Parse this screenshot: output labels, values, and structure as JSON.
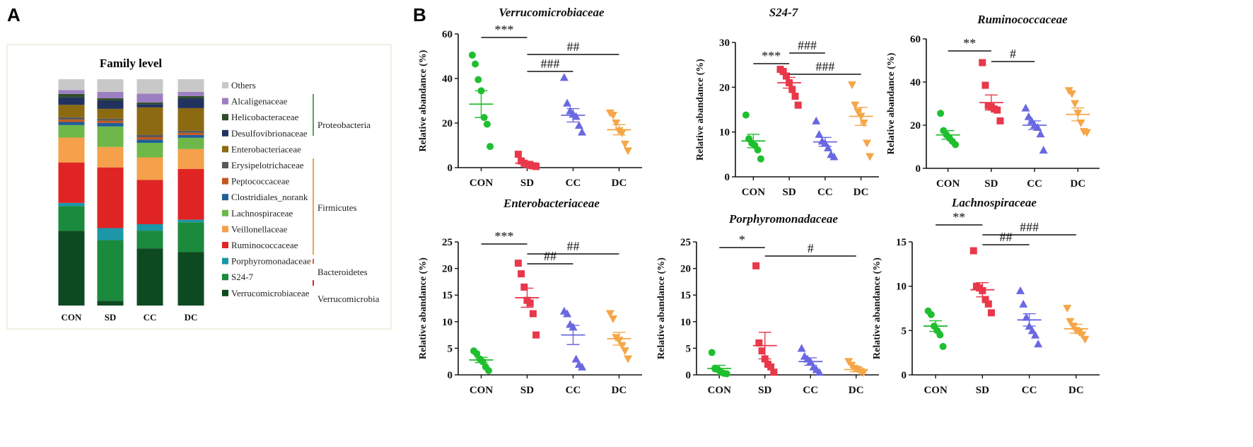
{
  "panel_labels": {
    "a": "A",
    "b": "B"
  },
  "stack": {
    "title": "Family level",
    "categories": [
      "CON",
      "SD",
      "CC",
      "DC"
    ],
    "families": [
      {
        "name": "Verrucomicrobiaceae",
        "color": "#0d4a22",
        "values": [
          48.0,
          3.4,
          35.5,
          38.0
        ]
      },
      {
        "name": "S24-7",
        "color": "#1b8a3c",
        "values": [
          16.0,
          43.0,
          11.0,
          21.0
        ]
      },
      {
        "name": "Porphyromonadaceae",
        "color": "#1b97a8",
        "values": [
          2.0,
          8.5,
          4.0,
          1.8
        ]
      },
      {
        "name": "Ruminococcaceae",
        "color": "#e02424",
        "values": [
          26.0,
          43.0,
          27.5,
          36.0
        ]
      },
      {
        "name": "Veillonellaceae",
        "color": "#f5a04a",
        "values": [
          16.0,
          14.5,
          14.0,
          14.0
        ]
      },
      {
        "name": "Lachnospiraceae",
        "color": "#6db849",
        "values": [
          8.0,
          14.5,
          9.0,
          8.0
        ]
      },
      {
        "name": "Clostridiales_norank",
        "color": "#1f5f9a",
        "values": [
          2.0,
          2.5,
          2.0,
          2.0
        ]
      },
      {
        "name": "Peptococcaceae",
        "color": "#c4571e",
        "values": [
          1.5,
          1.5,
          1.5,
          1.5
        ]
      },
      {
        "name": "Erysipelotrichaceae",
        "color": "#5a5a5a",
        "values": [
          1.5,
          1.5,
          1.5,
          1.5
        ]
      },
      {
        "name": "Enterobacteriaceae",
        "color": "#8c6a12",
        "values": [
          8.0,
          7.0,
          17.0,
          16.0
        ]
      },
      {
        "name": "Desulfovibrionaceae",
        "color": "#22325e",
        "values": [
          5.0,
          6.0,
          2.0,
          7.0
        ]
      },
      {
        "name": "Helicobacteraceae",
        "color": "#2e4d26",
        "values": [
          2.0,
          1.5,
          1.0,
          1.5
        ]
      },
      {
        "name": "Alcaligenaceae",
        "color": "#9c7fc0",
        "values": [
          2.5,
          4.5,
          5.5,
          3.0
        ]
      },
      {
        "name": "Others",
        "color": "#c8c8c8",
        "values": [
          7.0,
          9.0,
          9.0,
          9.0
        ]
      }
    ],
    "phyla": [
      {
        "name": "Proteobacteria",
        "color": "#4cae4c"
      },
      {
        "name": "Firmicutes",
        "color": "#f0a050"
      },
      {
        "name": "Bacteroidetes",
        "color": "#e06020"
      },
      {
        "name": "Verrucomicrobia",
        "color": "#e02424"
      }
    ]
  },
  "scatter_common": {
    "ylabel": "Relative abandance (%)",
    "categories": [
      "CON",
      "SD",
      "CC",
      "DC"
    ],
    "group_colors": [
      "#1fbf2f",
      "#e8384a",
      "#6a68e0",
      "#f5a647"
    ],
    "group_markers": [
      "circle",
      "square",
      "triangle-up",
      "triangle-down"
    ]
  },
  "chart_data": [
    {
      "type": "scatter",
      "title": "Verrucomicrobiaceae",
      "ylim": [
        0,
        60
      ],
      "ticks": [
        0,
        20,
        40,
        60
      ],
      "groups": [
        [
          50.5,
          46.5,
          39.5,
          34.5,
          22.5,
          19.5,
          9.5
        ],
        [
          6.0,
          3.0,
          2.0,
          1.5,
          1.0,
          0.8,
          0.5
        ],
        [
          40.5,
          29.0,
          25.5,
          24.0,
          23.0,
          19.0,
          16.0
        ],
        [
          24.5,
          23.5,
          20.0,
          16.5,
          15.5,
          10.5,
          7.5
        ]
      ],
      "means": [
        28.5,
        2.0,
        23.5,
        17.0
      ],
      "sems": [
        6.0,
        0.8,
        3.0,
        2.3
      ],
      "sig": [
        {
          "from": 0,
          "to": 1,
          "label": "***",
          "level": 0
        },
        {
          "from": 1,
          "to": 3,
          "label": "##",
          "level": 1
        },
        {
          "from": 1,
          "to": 2,
          "label": "###",
          "level": 2
        }
      ]
    },
    {
      "type": "scatter",
      "title": "S24-7",
      "ylim": [
        0,
        30
      ],
      "ticks": [
        0,
        10,
        20,
        30
      ],
      "groups": [
        [
          13.8,
          8.5,
          7.5,
          7.0,
          6.0,
          4.0
        ],
        [
          24.0,
          23.5,
          22.5,
          21.0,
          19.5,
          18.0,
          16.0
        ],
        [
          12.5,
          9.5,
          8.0,
          7.5,
          6.5,
          5.0,
          4.5
        ],
        [
          20.5,
          16.0,
          14.5,
          13.5,
          12.0,
          7.5,
          4.5
        ]
      ],
      "means": [
        8.0,
        21.0,
        7.8,
        13.5
      ],
      "sems": [
        1.5,
        1.2,
        1.0,
        2.0
      ],
      "sig": [
        {
          "from": 0,
          "to": 1,
          "label": "***",
          "level": 1
        },
        {
          "from": 1,
          "to": 2,
          "label": "###",
          "level": 0
        },
        {
          "from": 1,
          "to": 3,
          "label": "###",
          "level": 2
        }
      ]
    },
    {
      "type": "scatter",
      "title": "Ruminococcaceae",
      "ylim": [
        0,
        60
      ],
      "ticks": [
        0,
        20,
        40,
        60
      ],
      "groups": [
        [
          25.5,
          17.5,
          15.5,
          14.0,
          12.5,
          11.0
        ],
        [
          49.0,
          38.5,
          29.0,
          28.5,
          27.5,
          27.0,
          22.0
        ],
        [
          28.0,
          24.0,
          22.0,
          20.0,
          19.0,
          16.0,
          8.5
        ],
        [
          36.0,
          34.5,
          30.0,
          25.5,
          21.0,
          17.0,
          16.5
        ]
      ],
      "means": [
        15.5,
        30.5,
        20.0,
        25.0
      ],
      "sems": [
        2.0,
        3.5,
        2.0,
        3.0
      ],
      "sig": [
        {
          "from": 0,
          "to": 1,
          "label": "**",
          "level": 0
        },
        {
          "from": 1,
          "to": 2,
          "label": "#",
          "level": 1
        }
      ]
    },
    {
      "type": "scatter",
      "title": "Enterobacteriaceae",
      "ylim": [
        0,
        25
      ],
      "ticks": [
        0,
        5,
        10,
        15,
        20,
        25
      ],
      "groups": [
        [
          4.5,
          4.0,
          3.0,
          2.5,
          1.5,
          0.8
        ],
        [
          21.0,
          19.0,
          16.5,
          14.0,
          13.5,
          11.5,
          7.5
        ],
        [
          12.0,
          11.5,
          9.5,
          9.0,
          3.0,
          2.0,
          1.5
        ],
        [
          11.5,
          10.5,
          7.0,
          6.5,
          5.5,
          4.5,
          3.0
        ]
      ],
      "means": [
        2.8,
        14.5,
        7.5,
        6.8
      ],
      "sems": [
        0.5,
        1.8,
        1.8,
        1.2
      ],
      "sig": [
        {
          "from": 0,
          "to": 1,
          "label": "***",
          "level": 0
        },
        {
          "from": 1,
          "to": 3,
          "label": "##",
          "level": 1
        },
        {
          "from": 1,
          "to": 2,
          "label": "##",
          "level": 2
        }
      ]
    },
    {
      "type": "scatter",
      "title": "Porphyromonadaceae",
      "ylim": [
        0,
        25
      ],
      "ticks": [
        0,
        5,
        10,
        15,
        20,
        25
      ],
      "groups": [
        [
          4.2,
          1.2,
          1.0,
          0.5,
          0.3,
          0.2
        ],
        [
          20.5,
          6.0,
          4.5,
          3.0,
          2.0,
          1.5,
          0.5
        ],
        [
          5.0,
          3.5,
          3.0,
          2.5,
          1.5,
          1.0,
          0.5
        ],
        [
          2.5,
          1.8,
          1.2,
          1.0,
          0.6,
          0.4
        ]
      ],
      "means": [
        1.2,
        5.5,
        2.5,
        1.0
      ],
      "sems": [
        0.6,
        2.5,
        0.7,
        0.4
      ],
      "sig": [
        {
          "from": 0,
          "to": 1,
          "label": "*",
          "level": 0
        },
        {
          "from": 1,
          "to": 3,
          "label": "#",
          "level": 1
        }
      ]
    },
    {
      "type": "scatter",
      "title": "Lachnospiraceae",
      "ylim": [
        0,
        15
      ],
      "ticks": [
        0,
        5,
        10,
        15
      ],
      "groups": [
        [
          7.2,
          6.8,
          5.5,
          5.0,
          4.5,
          3.2
        ],
        [
          14.0,
          10.0,
          9.8,
          9.5,
          8.5,
          8.0,
          7.0
        ],
        [
          9.5,
          8.0,
          6.5,
          5.5,
          5.0,
          4.5,
          3.5
        ],
        [
          7.5,
          6.0,
          5.5,
          5.0,
          4.8,
          4.5,
          4.0
        ]
      ],
      "means": [
        5.5,
        9.6,
        6.2,
        5.2
      ],
      "sems": [
        0.6,
        0.8,
        0.7,
        0.5
      ],
      "sig": [
        {
          "from": 0,
          "to": 1,
          "label": "**",
          "level": 0
        },
        {
          "from": 1,
          "to": 3,
          "label": "###",
          "level": 1
        },
        {
          "from": 1,
          "to": 2,
          "label": "##",
          "level": 2
        }
      ]
    }
  ]
}
